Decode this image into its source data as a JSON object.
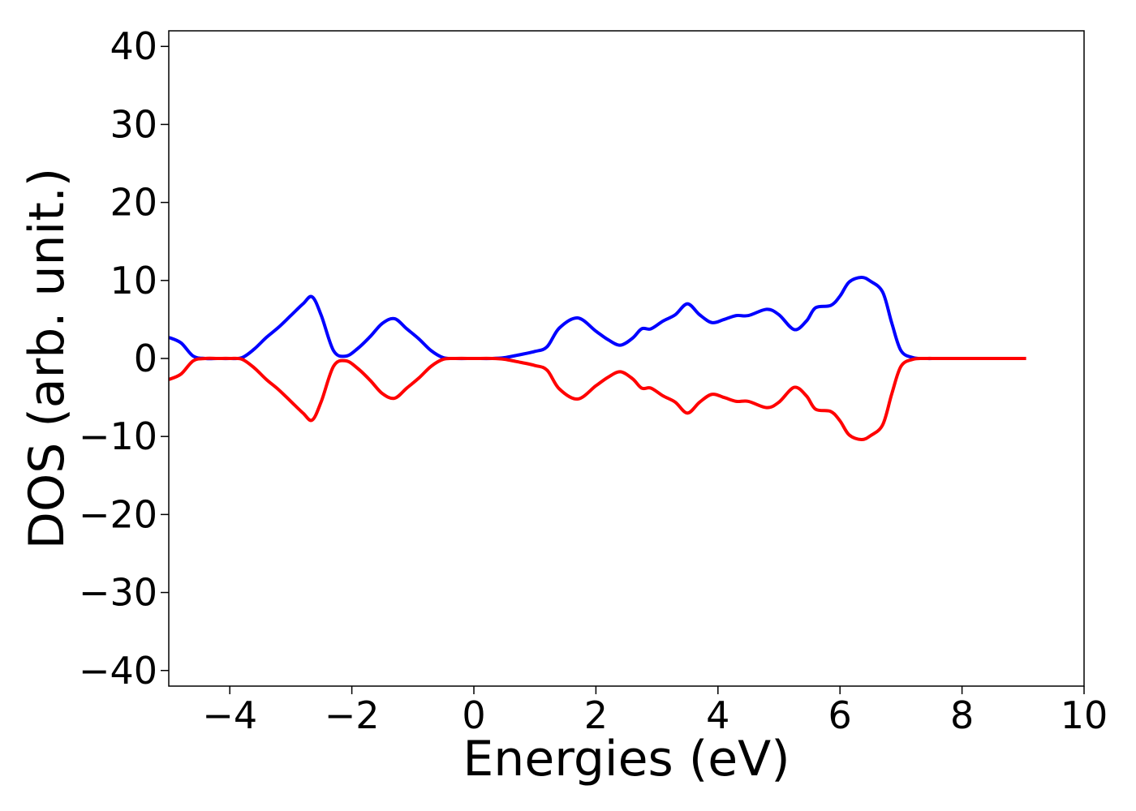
{
  "chart_data": {
    "type": "line",
    "title": "",
    "xlabel": "Energies (eV)",
    "ylabel": "DOS (arb. unit.)",
    "xlim": [
      -5,
      10
    ],
    "ylim": [
      -42,
      42
    ],
    "x_ticks": [
      -4,
      -2,
      0,
      2,
      4,
      6,
      8,
      10
    ],
    "x_tick_labels": [
      "−4",
      "−2",
      "0",
      "2",
      "4",
      "6",
      "8",
      "10"
    ],
    "y_ticks": [
      40,
      30,
      20,
      10,
      0,
      -10,
      -20,
      -30,
      -40
    ],
    "y_tick_labels": [
      "40",
      "30",
      "20",
      "10",
      "0",
      "−10",
      "−20",
      "−30",
      "−40"
    ],
    "grid": false,
    "legend": "none",
    "series": [
      {
        "color": "#0000ff",
        "x": [
          -5.0,
          -4.8,
          -4.6,
          -4.4,
          -4.2,
          -4.0,
          -3.8,
          -3.6,
          -3.4,
          -3.2,
          -3.0,
          -2.8,
          -2.65,
          -2.5,
          -2.3,
          -2.1,
          -1.9,
          -1.7,
          -1.5,
          -1.3,
          -1.1,
          -0.9,
          -0.7,
          -0.5,
          -0.3,
          0.0,
          0.3,
          0.5,
          0.7,
          1.0,
          1.2,
          1.4,
          1.7,
          2.0,
          2.2,
          2.4,
          2.6,
          2.75,
          2.9,
          3.1,
          3.3,
          3.5,
          3.7,
          3.9,
          4.1,
          4.3,
          4.5,
          4.8,
          5.0,
          5.25,
          5.45,
          5.6,
          5.85,
          6.0,
          6.15,
          6.35,
          6.5,
          6.7,
          6.85,
          7.0,
          7.2,
          7.4,
          7.6,
          8.0,
          8.5,
          9.05
        ],
        "y": [
          2.7,
          2.0,
          0.3,
          0.0,
          0.0,
          0.0,
          0.1,
          1.2,
          2.7,
          4.0,
          5.5,
          7.0,
          7.9,
          5.5,
          1.0,
          0.3,
          1.3,
          2.8,
          4.5,
          5.1,
          3.8,
          2.5,
          1.0,
          0.1,
          0.0,
          0.0,
          0.0,
          0.1,
          0.4,
          0.9,
          1.5,
          3.9,
          5.2,
          3.5,
          2.4,
          1.7,
          2.6,
          3.8,
          3.8,
          4.8,
          5.6,
          7.0,
          5.6,
          4.6,
          5.0,
          5.5,
          5.5,
          6.3,
          5.6,
          3.7,
          4.8,
          6.5,
          6.8,
          8.0,
          9.8,
          10.4,
          9.9,
          8.5,
          4.5,
          1.0,
          0.1,
          0.0,
          0.0,
          0.0,
          0.0,
          0.0
        ]
      },
      {
        "color": "#ff0000",
        "x": [
          -5.0,
          -4.8,
          -4.6,
          -4.4,
          -4.2,
          -4.0,
          -3.8,
          -3.6,
          -3.4,
          -3.2,
          -3.0,
          -2.8,
          -2.65,
          -2.5,
          -2.3,
          -2.1,
          -1.9,
          -1.7,
          -1.5,
          -1.3,
          -1.1,
          -0.9,
          -0.7,
          -0.5,
          -0.3,
          0.0,
          0.3,
          0.5,
          0.7,
          1.0,
          1.2,
          1.4,
          1.7,
          2.0,
          2.2,
          2.4,
          2.6,
          2.75,
          2.9,
          3.1,
          3.3,
          3.5,
          3.7,
          3.9,
          4.1,
          4.3,
          4.5,
          4.8,
          5.0,
          5.25,
          5.45,
          5.6,
          5.85,
          6.0,
          6.15,
          6.35,
          6.5,
          6.7,
          6.85,
          7.0,
          7.2,
          7.4,
          7.6,
          8.0,
          8.5,
          9.05
        ],
        "y": [
          -2.7,
          -2.0,
          -0.3,
          0.0,
          0.0,
          0.0,
          -0.1,
          -1.2,
          -2.7,
          -4.0,
          -5.5,
          -7.0,
          -7.9,
          -5.5,
          -1.0,
          -0.3,
          -1.3,
          -2.8,
          -4.5,
          -5.1,
          -3.8,
          -2.5,
          -1.0,
          -0.1,
          0.0,
          0.0,
          0.0,
          -0.1,
          -0.4,
          -0.9,
          -1.5,
          -3.9,
          -5.2,
          -3.5,
          -2.4,
          -1.7,
          -2.6,
          -3.8,
          -3.8,
          -4.8,
          -5.6,
          -7.0,
          -5.6,
          -4.6,
          -5.0,
          -5.5,
          -5.5,
          -6.3,
          -5.6,
          -3.7,
          -4.8,
          -6.5,
          -6.8,
          -8.0,
          -9.8,
          -10.4,
          -9.9,
          -8.5,
          -4.5,
          -1.0,
          -0.1,
          0.0,
          0.0,
          0.0,
          0.0,
          0.0
        ]
      }
    ]
  }
}
